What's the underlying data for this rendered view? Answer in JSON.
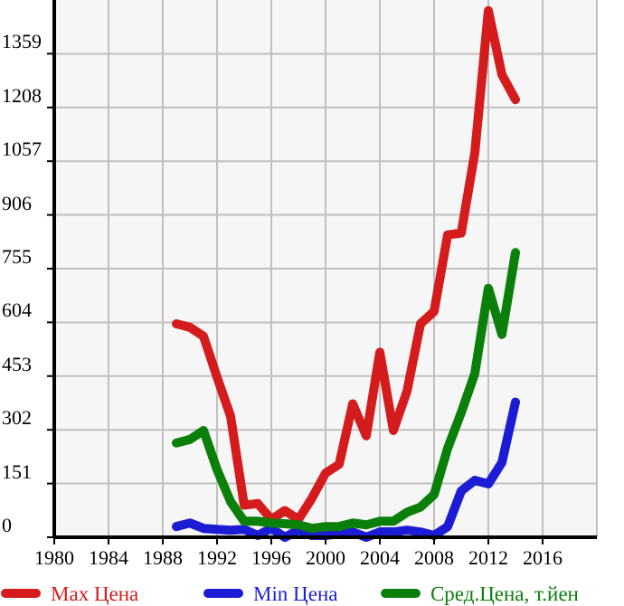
{
  "chart_data": {
    "type": "line",
    "x": [
      1989,
      1990,
      1991,
      1992,
      1993,
      1994,
      1995,
      1996,
      1997,
      1998,
      1999,
      2000,
      2001,
      2002,
      2003,
      2004,
      2005,
      2006,
      2007,
      2008,
      2009,
      2010,
      2011,
      2012,
      2013,
      2014
    ],
    "series": [
      {
        "name": "Max Цена",
        "color": "#d41c1c",
        "values": [
          600,
          590,
          565,
          450,
          340,
          90,
          95,
          50,
          75,
          50,
          110,
          180,
          205,
          375,
          285,
          520,
          300,
          410,
          600,
          635,
          850,
          855,
          1080,
          1480,
          1300,
          1230
        ]
      },
      {
        "name": "Min Цена",
        "color": "#1c1cd4",
        "values": [
          30,
          40,
          25,
          22,
          20,
          22,
          5,
          25,
          0,
          20,
          5,
          5,
          10,
          15,
          0,
          15,
          15,
          20,
          15,
          5,
          30,
          130,
          160,
          150,
          210,
          380
        ]
      },
      {
        "name": "Сред.Цена, т.йен",
        "color": "#0a800a",
        "values": [
          265,
          275,
          300,
          190,
          100,
          45,
          45,
          40,
          38,
          35,
          25,
          30,
          30,
          40,
          35,
          45,
          45,
          70,
          85,
          120,
          250,
          350,
          460,
          700,
          570,
          800
        ]
      }
    ],
    "xlim": [
      1980,
      2020
    ],
    "xticks": [
      1980,
      1984,
      1988,
      1992,
      1996,
      2000,
      2004,
      2008,
      2012,
      2016
    ],
    "ylim": [
      0,
      1510
    ],
    "yticks": [
      0,
      151,
      302,
      453,
      604,
      755,
      906,
      1057,
      1208,
      1359
    ],
    "grid": true,
    "legend": "bottom",
    "line_style": "solid"
  }
}
